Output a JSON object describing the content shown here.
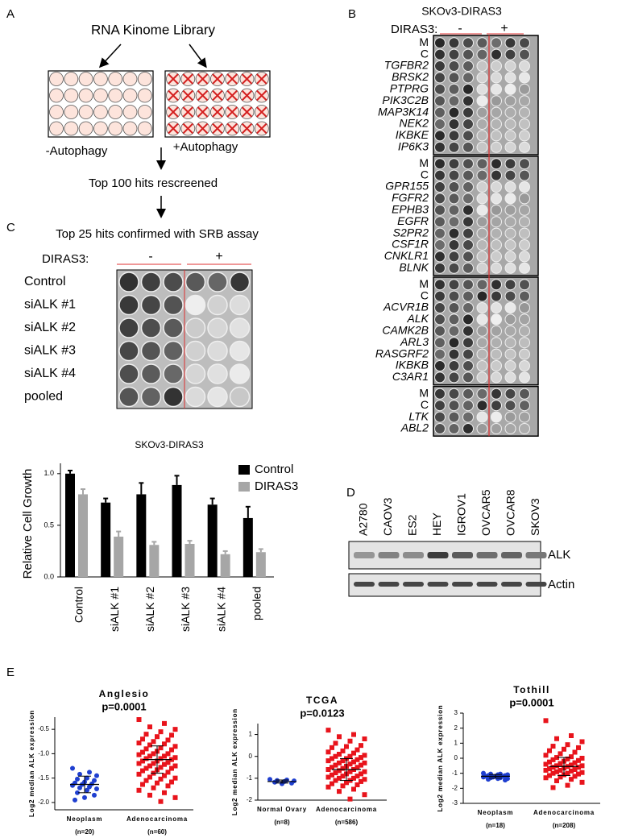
{
  "panel_a": {
    "label": "A",
    "title": "RNA Kinome Library",
    "minus": "-Autophagy",
    "plus": "+Autophagy",
    "rescreen": "Top 100 hits rescreened"
  },
  "panel_b": {
    "label": "B",
    "title": "SKOv3-DIRAS3",
    "condition": "DIRAS3:",
    "minus": "-",
    "plus": "+",
    "blocks": [
      [
        "M",
        "C",
        "TGFBR2",
        "BRSK2",
        "PTPRG",
        "PIK3C2B",
        "MAP3K14",
        "NEK2",
        "IKBKE",
        "IP6K3"
      ],
      [
        "M",
        "C",
        "GPR155",
        "FGFR2",
        "EPHB3",
        "EGFR",
        "S2PR2",
        "CSF1R",
        "CNKLR1",
        "BLNK"
      ],
      [
        "M",
        "C",
        "ACVR1B",
        "ALK",
        "CAMK2B",
        "ARL3",
        "RASGRF2",
        "IKBKB",
        "C3AR1"
      ],
      [
        "M",
        "C",
        "LTK",
        "ABL2"
      ]
    ]
  },
  "panel_c": {
    "label": "C",
    "title": "Top 25 hits confirmed with SRB assay",
    "condition": "DIRAS3:",
    "minus": "-",
    "plus": "+",
    "rows": [
      "Control",
      "siALK #1",
      "siALK #2",
      "siALK #3",
      "siALK #4",
      "pooled"
    ]
  },
  "panel_d": {
    "label": "D",
    "lanes": [
      "A2780",
      "CAOV3",
      "ES2",
      "HEY",
      "IGROV1",
      "OVCAR5",
      "OVCAR8",
      "SKOV3"
    ],
    "bands": [
      "ALK",
      "Actin"
    ]
  },
  "panel_e": {
    "label": "E"
  },
  "chart_data": [
    {
      "type": "bar",
      "title": "SKOv3-DIRAS3",
      "ylabel": "Relative Cell Growth",
      "categories": [
        "Control",
        "siALK #1",
        "siALK #2",
        "siALK #3",
        "siALK #4",
        "pooled"
      ],
      "series": [
        {
          "name": "Control",
          "color": "#000000",
          "values": [
            1.0,
            0.72,
            0.8,
            0.89,
            0.7,
            0.57
          ],
          "errors": [
            0.03,
            0.04,
            0.11,
            0.09,
            0.06,
            0.11
          ]
        },
        {
          "name": "DIRAS3",
          "color": "#a6a6a6",
          "values": [
            0.8,
            0.39,
            0.31,
            0.32,
            0.22,
            0.24
          ],
          "errors": [
            0.05,
            0.05,
            0.03,
            0.03,
            0.03,
            0.03
          ]
        }
      ],
      "ylim": [
        0,
        1.1
      ],
      "yticks": [
        {
          "value": 0,
          "label": "0.0"
        },
        {
          "value": 0.5,
          "label": "0.5"
        },
        {
          "value": 1,
          "label": "1.0"
        }
      ]
    },
    {
      "type": "scatter",
      "title": "Anglesio",
      "subtitle": "p=0.0001",
      "ylabel": "Log2 median ALK expression",
      "categories": [
        "Neoplasm",
        "Adenocarcinoma"
      ],
      "n_labels": [
        "(n=20)",
        "(n=60)"
      ],
      "ylim": [
        -2.15,
        -0.25
      ],
      "yticks": [
        {
          "value": -2,
          "label": "-2.0"
        },
        {
          "value": -1.5,
          "label": "-1.5"
        },
        {
          "value": -1,
          "label": "-1.0"
        },
        {
          "value": -0.5,
          "label": "-0.5"
        }
      ],
      "series": [
        {
          "color": "#1f3fd0",
          "mean": -1.63,
          "sd": 0.17,
          "values": [
            -1.3,
            -1.38,
            -1.42,
            -1.45,
            -1.5,
            -1.52,
            -1.55,
            -1.58,
            -1.6,
            -1.62,
            -1.63,
            -1.65,
            -1.68,
            -1.7,
            -1.72,
            -1.75,
            -1.8,
            -1.85,
            -1.9,
            -1.95
          ]
        },
        {
          "color": "#e8141c",
          "mean": -1.12,
          "sd": 0.28,
          "values": [
            -0.3,
            -0.38,
            -0.45,
            -0.5,
            -0.55,
            -0.6,
            -0.62,
            -0.65,
            -0.7,
            -0.72,
            -0.75,
            -0.78,
            -0.8,
            -0.82,
            -0.85,
            -0.88,
            -0.9,
            -0.92,
            -0.95,
            -0.97,
            -1.0,
            -1.0,
            -1.02,
            -1.05,
            -1.05,
            -1.08,
            -1.1,
            -1.1,
            -1.12,
            -1.15,
            -1.15,
            -1.18,
            -1.2,
            -1.2,
            -1.22,
            -1.25,
            -1.25,
            -1.28,
            -1.3,
            -1.3,
            -1.33,
            -1.35,
            -1.38,
            -1.4,
            -1.42,
            -1.45,
            -1.48,
            -1.5,
            -1.52,
            -1.55,
            -1.58,
            -1.6,
            -1.63,
            -1.66,
            -1.7,
            -1.75,
            -1.8,
            -1.85,
            -1.9,
            -1.98
          ]
        }
      ]
    },
    {
      "type": "scatter",
      "title": "TCGA",
      "subtitle": "p=0.0123",
      "ylabel": "Log2 median ALK expression",
      "categories": [
        "Normal Ovary",
        "Adenocarcinoma"
      ],
      "n_labels": [
        "(n=8)",
        "(n=586)"
      ],
      "ylim": [
        -2,
        1.5
      ],
      "yticks": [
        -2,
        -1,
        0,
        1
      ],
      "series": [
        {
          "color": "#1f3fd0",
          "mean": -1.15,
          "sd": 0.07,
          "values": [
            -1.05,
            -1.08,
            -1.1,
            -1.12,
            -1.15,
            -1.18,
            -1.22,
            -1.25
          ]
        },
        {
          "color": "#e8141c",
          "mean": -0.6,
          "sd": 0.5,
          "values": [
            1.2,
            1.0,
            0.9,
            0.8,
            0.7,
            0.6,
            0.5,
            0.45,
            0.4,
            0.3,
            0.25,
            0.2,
            0.15,
            0.1,
            0.05,
            0,
            0,
            -0.05,
            -0.1,
            -0.1,
            -0.15,
            -0.2,
            -0.2,
            -0.25,
            -0.3,
            -0.3,
            -0.35,
            -0.4,
            -0.4,
            -0.45,
            -0.5,
            -0.5,
            -0.55,
            -0.6,
            -0.6,
            -0.65,
            -0.7,
            -0.7,
            -0.75,
            -0.8,
            -0.8,
            -0.85,
            -0.9,
            -0.9,
            -0.95,
            -1.0,
            -1.0,
            -1.05,
            -1.1,
            -1.1,
            -1.15,
            -1.2,
            -1.25,
            -1.3,
            -1.35,
            -1.4,
            -1.5,
            -1.6,
            -1.75,
            -1.95
          ]
        }
      ]
    },
    {
      "type": "scatter",
      "title": "Tothill",
      "subtitle": "p=0.0001",
      "ylabel": "Log2 median ALK expression",
      "categories": [
        "Neoplasm",
        "Adenocarcinoma"
      ],
      "n_labels": [
        "(n=18)",
        "(n=208)"
      ],
      "ylim": [
        -3,
        3
      ],
      "yticks": [
        -3,
        -2,
        -1,
        0,
        1,
        2,
        3
      ],
      "series": [
        {
          "color": "#1f3fd0",
          "mean": -1.2,
          "sd": 0.12,
          "values": [
            -1.0,
            -1.05,
            -1.05,
            -1.1,
            -1.1,
            -1.15,
            -1.15,
            -1.2,
            -1.2,
            -1.2,
            -1.25,
            -1.25,
            -1.3,
            -1.3,
            -1.35,
            -1.35,
            -1.4,
            -1.45
          ]
        },
        {
          "color": "#e8141c",
          "mean": -0.55,
          "sd": 0.6,
          "values": [
            2.5,
            1.5,
            1.3,
            1.1,
            0.9,
            0.8,
            0.7,
            0.6,
            0.5,
            0.4,
            0.3,
            0.2,
            0.1,
            0.05,
            0,
            -0.05,
            -0.1,
            -0.15,
            -0.2,
            -0.25,
            -0.3,
            -0.35,
            -0.4,
            -0.45,
            -0.5,
            -0.5,
            -0.55,
            -0.6,
            -0.6,
            -0.65,
            -0.7,
            -0.75,
            -0.8,
            -0.8,
            -0.85,
            -0.9,
            -0.95,
            -1.0,
            -1.0,
            -1.05,
            -1.1,
            -1.15,
            -1.2,
            -1.25,
            -1.3,
            -1.4,
            -1.5,
            -1.6,
            -1.8,
            -1.95
          ]
        }
      ]
    }
  ]
}
